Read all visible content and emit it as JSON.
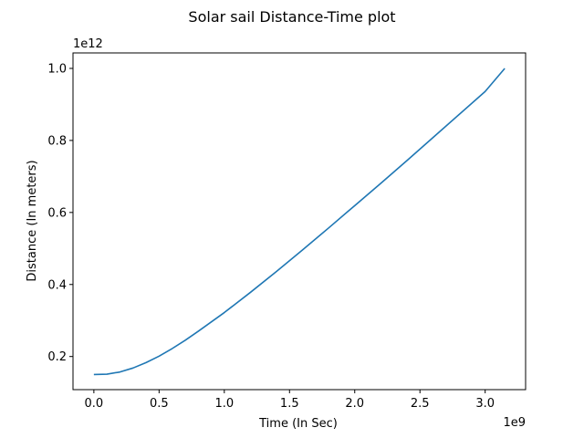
{
  "chart_data": {
    "type": "line",
    "title": "Solar sail Distance-Time plot",
    "xlabel": "Time (In Sec)",
    "ylabel": "Distance (In meters)",
    "x_offset_label": "1e9",
    "y_offset_label": "1e12",
    "xlim": [
      -160000000.0,
      3310000000.0
    ],
    "ylim": [
      108000000000.0,
      1043000000000.0
    ],
    "x_ticks": [
      0,
      500000000.0,
      1000000000.0,
      1500000000.0,
      2000000000.0,
      2500000000.0,
      3000000000.0
    ],
    "x_tick_labels": [
      "0.0",
      "0.5",
      "1.0",
      "1.5",
      "2.0",
      "2.5",
      "3.0"
    ],
    "y_ticks": [
      200000000000.0,
      400000000000.0,
      600000000000.0,
      800000000000.0,
      1000000000000.0
    ],
    "y_tick_labels": [
      "0.2",
      "0.4",
      "0.6",
      "0.8",
      "1.0"
    ],
    "grid": false,
    "series": [
      {
        "color": "#1f77b4",
        "x": [
          0,
          100000000.0,
          200000000.0,
          300000000.0,
          400000000.0,
          500000000.0,
          600000000.0,
          700000000.0,
          800000000.0,
          900000000.0,
          1000000000.0,
          1200000000.0,
          1400000000.0,
          1600000000.0,
          1800000000.0,
          2000000000.0,
          2200000000.0,
          2400000000.0,
          2600000000.0,
          2800000000.0,
          3000000000.0,
          3150000000.0
        ],
        "y": [
          150000000000.0,
          151000000000.0,
          157000000000.0,
          168000000000.0,
          183000000000.0,
          201000000000.0,
          222000000000.0,
          245000000000.0,
          270000000000.0,
          296000000000.0,
          322000000000.0,
          378000000000.0,
          436000000000.0,
          496000000000.0,
          557000000000.0,
          619000000000.0,
          681000000000.0,
          744000000000.0,
          808000000000.0,
          872000000000.0,
          936000000000.0,
          1000000000000.0
        ]
      }
    ]
  }
}
